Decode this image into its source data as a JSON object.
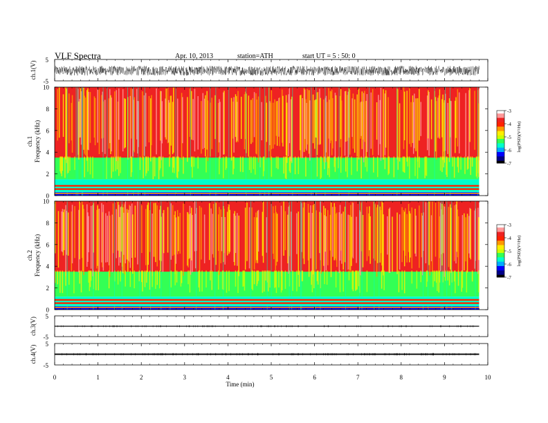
{
  "header": {
    "title": "VLF  Spectra",
    "date": "Apr. 10, 2013",
    "station": "station=ATH",
    "start": "start  UT  =   5 : 50: 0"
  },
  "colors": {
    "spectrogram_scale": [
      "#000000",
      "#000088",
      "#0000ff",
      "#00aaff",
      "#00ffcc",
      "#33ff55",
      "#ccff00",
      "#ffee00",
      "#ff9900",
      "#ff2200",
      "#ee2222",
      "#ff9999",
      "#ffffff"
    ]
  },
  "chart_data": [
    {
      "type": "line",
      "name": "ch1-waveform",
      "ylabel": "ch.1(V)",
      "ylim": [
        -5,
        5
      ],
      "yticks": [
        "5",
        "-5"
      ],
      "xlim": [
        0,
        10
      ],
      "amplitude_range": [
        -2.5,
        2.0
      ]
    },
    {
      "type": "heatmap",
      "name": "ch1-spectrogram",
      "ylabel_channel": "ch.1",
      "ylabel": "Frequency  (kHz)",
      "ylim": [
        0,
        10
      ],
      "yticks": [
        "0",
        "2",
        "4",
        "6",
        "8",
        "10"
      ],
      "xlim": [
        0,
        9.8
      ],
      "colorbar": {
        "label": "log(PSD)(V²/Hz)",
        "range": [
          -7,
          -3
        ],
        "ticks": [
          "-3",
          "-4",
          "-5",
          "-6",
          "-7"
        ]
      },
      "bands": [
        {
          "freq_khz": [
            3.5,
            10
          ],
          "log_psd": -3.8
        },
        {
          "freq_khz": [
            1.5,
            3.5
          ],
          "log_psd": -5.3
        },
        {
          "freq_khz": [
            0.3,
            1.5
          ],
          "log_psd": -5.6
        },
        {
          "freq_khz": [
            0,
            0.3
          ],
          "log_psd": -6.5
        }
      ],
      "lines_khz": [
        0.6,
        0.9
      ]
    },
    {
      "type": "heatmap",
      "name": "ch2-spectrogram",
      "ylabel_channel": "ch.2",
      "ylabel": "Frequency  (kHz)",
      "ylim": [
        0,
        10
      ],
      "yticks": [
        "0",
        "2",
        "4",
        "6",
        "8",
        "10"
      ],
      "xlim": [
        0,
        9.8
      ],
      "colorbar": {
        "label": "log(PSD)(V²/Hz)",
        "range": [
          -7,
          -3
        ],
        "ticks": [
          "-3",
          "-4",
          "-5",
          "-6",
          "-7"
        ]
      },
      "bands": [
        {
          "freq_khz": [
            3.5,
            10
          ],
          "log_psd": -3.8
        },
        {
          "freq_khz": [
            1.2,
            3.5
          ],
          "log_psd": -5.2
        },
        {
          "freq_khz": [
            0.3,
            1.2
          ],
          "log_psd": -5.6
        },
        {
          "freq_khz": [
            0,
            0.3
          ],
          "log_psd": -6.5
        }
      ],
      "lines_khz": [
        0.6,
        0.9
      ]
    },
    {
      "type": "line",
      "name": "ch3-waveform",
      "ylabel": "ch.3(V)",
      "ylim": [
        -5,
        5
      ],
      "yticks": [
        "5",
        "-5"
      ],
      "xlim": [
        0,
        10
      ],
      "level": 0,
      "amplitude_range": [
        -0.1,
        0.1
      ]
    },
    {
      "type": "line",
      "name": "ch4-waveform",
      "ylabel": "ch.4(V)",
      "ylim": [
        -5,
        5
      ],
      "yticks": [
        "5",
        "-5"
      ],
      "xlim": [
        0,
        10
      ],
      "level": 0,
      "amplitude_range": [
        -0.3,
        0.3
      ]
    }
  ],
  "xaxis": {
    "label": "Time  (min)",
    "ticks": [
      "0",
      "1",
      "2",
      "3",
      "4",
      "5",
      "6",
      "7",
      "8",
      "9",
      "10"
    ],
    "range": [
      0,
      10
    ],
    "data_end": 9.8
  }
}
